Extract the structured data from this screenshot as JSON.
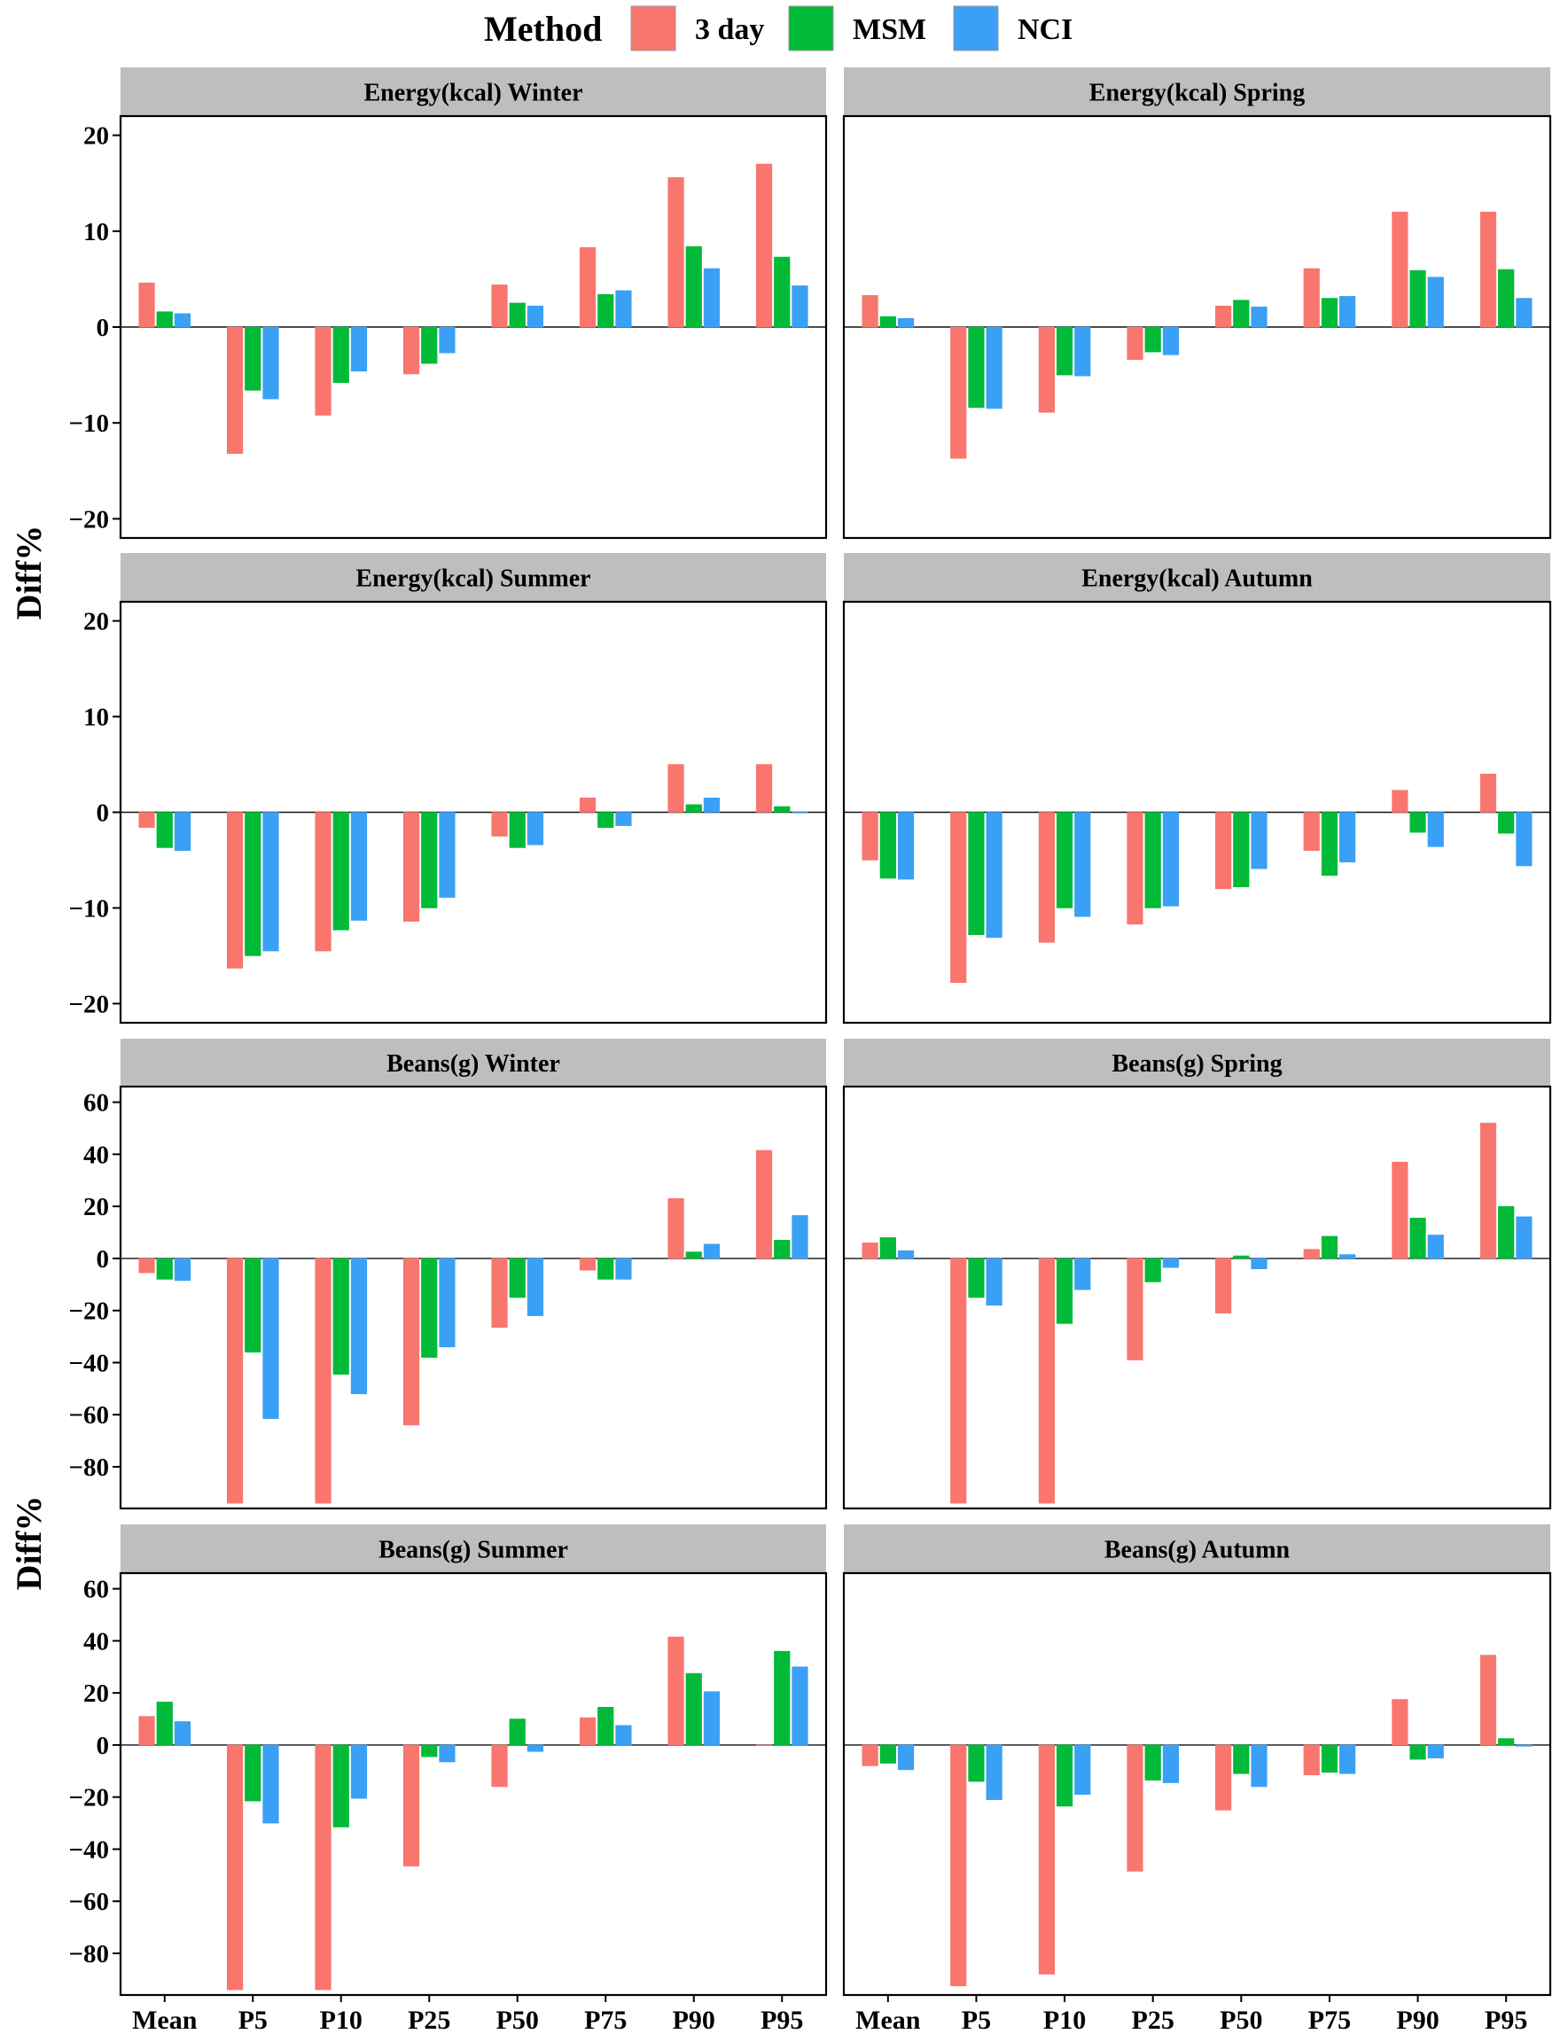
{
  "legend": {
    "title": "Method",
    "items": [
      {
        "label": "3 day",
        "color": "#F8766D"
      },
      {
        "label": "MSM",
        "color": "#00BA38"
      },
      {
        "label": "NCI",
        "color": "#3AA0F5"
      }
    ]
  },
  "ylabel": "Diff%",
  "chart_data": [
    {
      "type": "bar",
      "title": "Energy(kcal)   Winter",
      "categories": [
        "Mean",
        "P5",
        "P10",
        "P25",
        "P50",
        "P75",
        "P90",
        "P95"
      ],
      "ylim": [
        -22,
        22
      ],
      "yticks": [
        -20,
        -10,
        0,
        10,
        20
      ],
      "series": [
        {
          "name": "3 day",
          "values": [
            4.6,
            -13.2,
            -9.2,
            -4.9,
            4.4,
            8.3,
            15.6,
            17.0
          ]
        },
        {
          "name": "MSM",
          "values": [
            1.6,
            -6.6,
            -5.8,
            -3.8,
            2.5,
            3.4,
            8.4,
            7.3
          ]
        },
        {
          "name": "NCI",
          "values": [
            1.4,
            -7.5,
            -4.6,
            -2.7,
            2.2,
            3.8,
            6.1,
            4.3
          ]
        }
      ]
    },
    {
      "type": "bar",
      "title": "Energy(kcal)   Spring",
      "categories": [
        "Mean",
        "P5",
        "P10",
        "P25",
        "P50",
        "P75",
        "P90",
        "P95"
      ],
      "ylim": [
        -22,
        22
      ],
      "yticks": [
        -20,
        -10,
        0,
        10,
        20
      ],
      "series": [
        {
          "name": "3 day",
          "values": [
            3.3,
            -13.7,
            -8.9,
            -3.4,
            2.2,
            6.1,
            12.0,
            12.0
          ]
        },
        {
          "name": "MSM",
          "values": [
            1.1,
            -8.4,
            -5.0,
            -2.6,
            2.8,
            3.0,
            5.9,
            6.0
          ]
        },
        {
          "name": "NCI",
          "values": [
            0.9,
            -8.5,
            -5.1,
            -2.9,
            2.1,
            3.2,
            5.2,
            3.0
          ]
        }
      ]
    },
    {
      "type": "bar",
      "title": "Energy(kcal)   Summer",
      "categories": [
        "Mean",
        "P5",
        "P10",
        "P25",
        "P50",
        "P75",
        "P90",
        "P95"
      ],
      "ylim": [
        -22,
        22
      ],
      "yticks": [
        -20,
        -10,
        0,
        10,
        20
      ],
      "series": [
        {
          "name": "3 day",
          "values": [
            -1.6,
            -16.3,
            -14.5,
            -11.4,
            -2.5,
            1.5,
            5.0,
            5.0
          ]
        },
        {
          "name": "MSM",
          "values": [
            -3.7,
            -15.0,
            -12.3,
            -10.0,
            -3.7,
            -1.6,
            0.8,
            0.6
          ]
        },
        {
          "name": "NCI",
          "values": [
            -4.0,
            -14.5,
            -11.3,
            -8.9,
            -3.4,
            -1.4,
            1.5,
            0.0
          ]
        }
      ]
    },
    {
      "type": "bar",
      "title": "Energy(kcal)   Autumn",
      "categories": [
        "Mean",
        "P5",
        "P10",
        "P25",
        "P50",
        "P75",
        "P90",
        "P95"
      ],
      "ylim": [
        -22,
        22
      ],
      "yticks": [
        -20,
        -10,
        0,
        10,
        20
      ],
      "series": [
        {
          "name": "3 day",
          "values": [
            -5.0,
            -17.8,
            -13.6,
            -11.7,
            -8.0,
            -4.0,
            2.3,
            4.0
          ]
        },
        {
          "name": "MSM",
          "values": [
            -6.9,
            -12.8,
            -10.0,
            -10.0,
            -7.8,
            -6.6,
            -2.1,
            -2.2
          ]
        },
        {
          "name": "NCI",
          "values": [
            -7.0,
            -13.1,
            -10.9,
            -9.8,
            -5.9,
            -5.2,
            -3.6,
            -5.6
          ]
        }
      ]
    },
    {
      "type": "bar",
      "title": "Beans(g)   Winter",
      "categories": [
        "Mean",
        "P5",
        "P10",
        "P25",
        "P50",
        "P75",
        "P90",
        "P95"
      ],
      "ylim": [
        -96,
        66
      ],
      "yticks": [
        -80,
        -60,
        -40,
        -20,
        0,
        20,
        40,
        60
      ],
      "series": [
        {
          "name": "3 day",
          "values": [
            -5.5,
            -94.0,
            -94.0,
            -64.0,
            -26.5,
            -4.5,
            23.0,
            41.5
          ]
        },
        {
          "name": "MSM",
          "values": [
            -8.0,
            -36.0,
            -44.5,
            -38.0,
            -15.0,
            -8.0,
            2.5,
            7.0
          ]
        },
        {
          "name": "NCI",
          "values": [
            -8.5,
            -61.5,
            -52.0,
            -34.0,
            -22.0,
            -8.0,
            5.5,
            16.5
          ]
        }
      ]
    },
    {
      "type": "bar",
      "title": "Beans(g)   Spring",
      "categories": [
        "Mean",
        "P5",
        "P10",
        "P25",
        "P50",
        "P75",
        "P90",
        "P95"
      ],
      "ylim": [
        -96,
        66
      ],
      "yticks": [
        -80,
        -60,
        -40,
        -20,
        0,
        20,
        40,
        60
      ],
      "series": [
        {
          "name": "3 day",
          "values": [
            6.0,
            -94.0,
            -94.0,
            -39.0,
            -21.0,
            3.5,
            37.0,
            52.0
          ]
        },
        {
          "name": "MSM",
          "values": [
            8.0,
            -15.0,
            -25.0,
            -9.0,
            1.0,
            8.5,
            15.5,
            20.0
          ]
        },
        {
          "name": "NCI",
          "values": [
            3.0,
            -18.0,
            -12.0,
            -3.5,
            -4.0,
            1.5,
            9.0,
            16.0
          ]
        }
      ]
    },
    {
      "type": "bar",
      "title": "Beans(g)   Summer",
      "categories": [
        "Mean",
        "P5",
        "P10",
        "P25",
        "P50",
        "P75",
        "P90",
        "P95"
      ],
      "ylim": [
        -96,
        66
      ],
      "yticks": [
        -80,
        -60,
        -40,
        -20,
        0,
        20,
        40,
        60
      ],
      "series": [
        {
          "name": "3 day",
          "values": [
            11.0,
            -94.0,
            -94.0,
            -46.5,
            -16.0,
            10.5,
            41.5,
            0.0
          ]
        },
        {
          "name": "MSM",
          "values": [
            16.5,
            -21.5,
            -31.5,
            -4.5,
            10.0,
            14.5,
            27.5,
            36.0
          ]
        },
        {
          "name": "NCI",
          "values": [
            9.0,
            -30.0,
            -20.5,
            -6.5,
            -2.5,
            7.5,
            20.5,
            30.0
          ]
        }
      ]
    },
    {
      "type": "bar",
      "title": "Beans(g)   Autumn",
      "categories": [
        "Mean",
        "P5",
        "P10",
        "P25",
        "P50",
        "P75",
        "P90",
        "P95"
      ],
      "ylim": [
        -96,
        66
      ],
      "yticks": [
        -80,
        -60,
        -40,
        -20,
        0,
        20,
        40,
        60
      ],
      "series": [
        {
          "name": "3 day",
          "values": [
            -8.0,
            -92.5,
            -88.0,
            -48.5,
            -25.0,
            -11.5,
            17.5,
            34.5
          ]
        },
        {
          "name": "MSM",
          "values": [
            -7.0,
            -14.0,
            -23.5,
            -13.5,
            -11.0,
            -10.5,
            -5.5,
            2.5
          ]
        },
        {
          "name": "NCI",
          "values": [
            -9.5,
            -21.0,
            -19.0,
            -14.5,
            -16.0,
            -11.0,
            -5.0,
            -0.5
          ]
        }
      ]
    }
  ]
}
